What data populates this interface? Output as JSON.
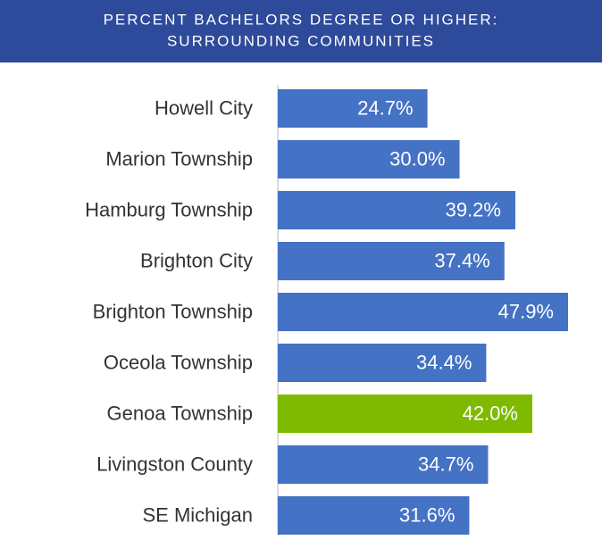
{
  "chart_data": {
    "type": "bar",
    "orientation": "horizontal",
    "title": [
      "PERCENT BACHELORS DEGREE OR HIGHER:",
      "SURROUNDING COMMUNITIES"
    ],
    "categories": [
      "Howell City",
      "Marion Township",
      "Hamburg Township",
      "Brighton City",
      "Brighton Township",
      "Oceola Township",
      "Genoa Township",
      "Livingston County",
      "SE Michigan"
    ],
    "values": [
      24.7,
      30.0,
      39.2,
      37.4,
      47.9,
      34.4,
      42.0,
      34.7,
      31.6
    ],
    "value_labels": [
      "24.7%",
      "30.0%",
      "39.2%",
      "37.4%",
      "47.9%",
      "34.4%",
      "42.0%",
      "34.7%",
      "31.6%"
    ],
    "colors": [
      "#4472c4",
      "#4472c4",
      "#4472c4",
      "#4472c4",
      "#4472c4",
      "#4472c4",
      "#7fba00",
      "#4472c4",
      "#4472c4"
    ],
    "title_background": "#2e4a9a"
  }
}
